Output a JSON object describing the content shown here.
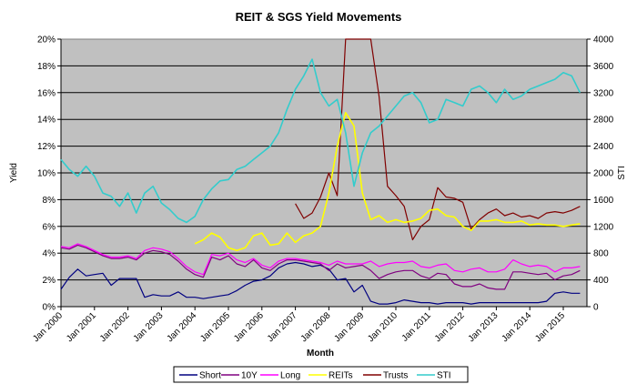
{
  "chart_data": {
    "type": "line",
    "title": "REIT & SGS Yield Movements",
    "xlabel": "Month",
    "ylabel": "Yield",
    "y2label": "STI",
    "ylim": [
      0,
      20
    ],
    "y2lim": [
      0,
      4000
    ],
    "yticks": [
      "0%",
      "2%",
      "4%",
      "6%",
      "8%",
      "10%",
      "12%",
      "14%",
      "16%",
      "18%",
      "20%"
    ],
    "y2ticks": [
      "0",
      "400",
      "800",
      "1200",
      "1600",
      "2000",
      "2400",
      "2800",
      "3200",
      "3600",
      "4000"
    ],
    "xticks": [
      "Jan 2000",
      "Jan 2001",
      "Jan 2002",
      "Jan 2003",
      "Jan 2004",
      "Jan 2005",
      "Jan 2006",
      "Jan 2007",
      "Jan 2008",
      "Jan 2009",
      "Jan 2010",
      "Jan 2011",
      "Jan 2012",
      "Jan 2013",
      "Jan 2014",
      "Jan 2015"
    ],
    "grid": true,
    "legend_position": "bottom",
    "x_start": 2000.0,
    "x_step": 0.25,
    "series": [
      {
        "name": "Short",
        "axis": "left",
        "color": "#000080",
        "values": [
          1.3,
          2.2,
          2.8,
          2.3,
          2.4,
          2.5,
          1.6,
          2.1,
          2.1,
          2.1,
          0.7,
          0.9,
          0.8,
          0.8,
          1.1,
          0.7,
          0.7,
          0.6,
          0.7,
          0.8,
          0.9,
          1.2,
          1.6,
          1.9,
          2.0,
          2.3,
          2.9,
          3.2,
          3.3,
          3.2,
          3.0,
          3.1,
          2.8,
          2.0,
          2.1,
          1.1,
          1.6,
          0.4,
          0.2,
          0.2,
          0.3,
          0.5,
          0.4,
          0.3,
          0.3,
          0.2,
          0.3,
          0.3,
          0.3,
          0.2,
          0.3,
          0.3,
          0.3,
          0.3,
          0.3,
          0.3,
          0.3,
          0.3,
          0.4,
          1.0,
          1.1,
          1.0,
          1.0
        ]
      },
      {
        "name": "10Y",
        "axis": "left",
        "color": "#800080",
        "values": [
          4.4,
          4.3,
          4.6,
          4.4,
          4.1,
          3.8,
          3.6,
          3.6,
          3.7,
          3.5,
          4.0,
          4.2,
          4.1,
          3.9,
          3.4,
          2.8,
          2.4,
          2.2,
          3.7,
          3.5,
          3.8,
          3.2,
          3.0,
          3.5,
          2.9,
          2.7,
          3.2,
          3.5,
          3.5,
          3.4,
          3.3,
          3.2,
          2.7,
          3.2,
          2.9,
          3.0,
          3.1,
          2.7,
          2.1,
          2.4,
          2.6,
          2.7,
          2.7,
          2.3,
          2.1,
          2.5,
          2.4,
          1.7,
          1.5,
          1.5,
          1.7,
          1.4,
          1.3,
          1.3,
          2.6,
          2.6,
          2.5,
          2.4,
          2.5,
          2.0,
          2.3,
          2.4,
          2.7
        ]
      },
      {
        "name": "Long",
        "axis": "left",
        "color": "#FF00FF",
        "values": [
          4.5,
          4.4,
          4.7,
          4.5,
          4.2,
          3.9,
          3.7,
          3.7,
          3.8,
          3.6,
          4.2,
          4.4,
          4.3,
          4.1,
          3.6,
          3.0,
          2.6,
          2.4,
          3.9,
          3.8,
          4.0,
          3.5,
          3.3,
          3.6,
          3.1,
          2.9,
          3.4,
          3.6,
          3.6,
          3.5,
          3.4,
          3.3,
          3.1,
          3.4,
          3.2,
          3.2,
          3.2,
          3.4,
          3.0,
          3.2,
          3.3,
          3.3,
          3.4,
          3.0,
          2.9,
          3.1,
          3.2,
          2.7,
          2.6,
          2.8,
          2.9,
          2.6,
          2.6,
          2.8,
          3.5,
          3.2,
          3.0,
          3.1,
          3.0,
          2.6,
          2.9,
          2.9,
          3.0
        ]
      },
      {
        "name": "REITs",
        "axis": "left",
        "color": "#FFFF00",
        "values": [
          null,
          null,
          null,
          null,
          null,
          null,
          null,
          null,
          null,
          null,
          null,
          null,
          null,
          null,
          null,
          null,
          4.7,
          5.0,
          5.5,
          5.2,
          4.4,
          4.2,
          4.4,
          5.3,
          5.5,
          4.6,
          4.7,
          5.5,
          4.8,
          5.3,
          5.5,
          6.0,
          8.5,
          12.0,
          14.5,
          13.5,
          8.5,
          6.5,
          6.8,
          6.3,
          6.5,
          6.3,
          6.4,
          6.6,
          7.2,
          7.3,
          6.8,
          6.7,
          6.0,
          5.7,
          6.4,
          6.4,
          6.5,
          6.3,
          6.3,
          6.4,
          6.1,
          6.2,
          6.1,
          6.1,
          6.0,
          6.1,
          6.2
        ]
      },
      {
        "name": "Trusts",
        "axis": "left",
        "color": "#800000",
        "values": [
          null,
          null,
          null,
          null,
          null,
          null,
          null,
          null,
          null,
          null,
          null,
          null,
          null,
          null,
          null,
          null,
          null,
          null,
          null,
          null,
          null,
          null,
          null,
          null,
          null,
          null,
          null,
          null,
          7.7,
          6.6,
          7.0,
          8.2,
          10.0,
          8.3,
          20.0,
          20.0,
          20.0,
          20.0,
          15.7,
          9.0,
          8.3,
          7.5,
          5.0,
          6.0,
          6.5,
          8.9,
          8.2,
          8.1,
          7.8,
          5.8,
          6.5,
          7.0,
          7.3,
          6.8,
          7.0,
          6.7,
          6.8,
          6.6,
          7.0,
          7.1,
          7.0,
          7.2,
          7.5
        ]
      },
      {
        "name": "STI",
        "axis": "right",
        "color": "#33CCCC",
        "values": [
          2200,
          2050,
          1950,
          2100,
          1950,
          1700,
          1650,
          1500,
          1700,
          1400,
          1700,
          1800,
          1550,
          1450,
          1320,
          1260,
          1350,
          1600,
          1760,
          1880,
          1900,
          2050,
          2100,
          2200,
          2300,
          2400,
          2600,
          2950,
          3250,
          3450,
          3700,
          3200,
          3000,
          3100,
          2600,
          1800,
          2300,
          2600,
          2700,
          2850,
          3000,
          3150,
          3200,
          3050,
          2750,
          2800,
          3100,
          3050,
          3000,
          3250,
          3300,
          3200,
          3050,
          3250,
          3100,
          3150,
          3250,
          3300,
          3350,
          3400,
          3500,
          3450,
          3200
        ]
      }
    ]
  }
}
